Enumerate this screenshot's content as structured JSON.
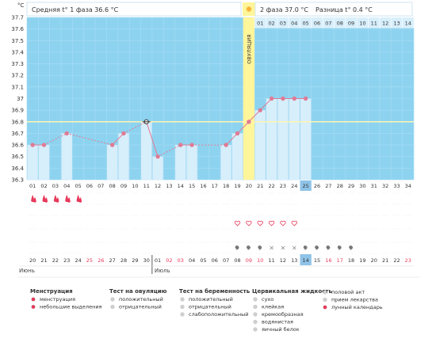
{
  "header": {
    "unit": "°C",
    "phase1": "Средняя t° 1 фаза 36.6 °C",
    "phase2": "2 фаза 37.0 °C",
    "diff": "Разница t° 0.4 °C",
    "ovulation": "ОВУЛЯЦИЯ"
  },
  "chart_data": {
    "type": "line",
    "ylim": [
      36.3,
      37.7
    ],
    "yticks": [
      "37.7",
      "37.6",
      "37.5",
      "37.4",
      "37.3",
      "37.2",
      "37.1",
      "37",
      "36.9",
      "36.8",
      "36.7",
      "36.6",
      "36.5",
      "36.4",
      "36.3"
    ],
    "coverline": 36.8,
    "days": [
      "01",
      "02",
      "03",
      "04",
      "05",
      "06",
      "07",
      "08",
      "09",
      "10",
      "11",
      "12",
      "13",
      "14",
      "15",
      "16",
      "17",
      "18",
      "19",
      "20",
      "21",
      "22",
      "23",
      "24",
      "25",
      "26",
      "27",
      "28",
      "29",
      "30",
      "31",
      "32",
      "33",
      "34"
    ],
    "ovulation_day": 20,
    "current_day": 25,
    "temps": [
      36.6,
      36.6,
      null,
      36.7,
      null,
      null,
      null,
      36.6,
      36.7,
      null,
      36.8,
      36.5,
      null,
      36.6,
      36.6,
      null,
      null,
      36.6,
      36.7,
      36.8,
      36.9,
      37.0,
      37.0,
      37.0,
      37.0,
      null,
      null,
      null,
      null,
      null,
      null,
      null,
      null,
      null
    ],
    "phase2_days": [
      "01",
      "02",
      "03",
      "04",
      "05",
      "06",
      "07",
      "08",
      "09",
      "10",
      "11",
      "12",
      "13",
      "14"
    ],
    "dates": [
      "20",
      "21",
      "22",
      "23",
      "24",
      "25",
      "26",
      "27",
      "28",
      "29",
      "30",
      "01",
      "02",
      "03",
      "04",
      "05",
      "06",
      "07",
      "08",
      "09",
      "10",
      "11",
      "12",
      "13",
      "14",
      "15",
      "16",
      "17",
      "18",
      "19",
      "20",
      "21",
      "22",
      "23"
    ],
    "red_dates_idx": [
      5,
      6,
      12,
      13,
      19,
      20,
      26,
      27,
      33
    ],
    "today_date_idx": 24,
    "months": [
      "Июнь",
      "Июль"
    ],
    "menstruation_days": [
      1,
      2,
      3,
      4,
      5
    ],
    "intercourse_days": [
      19,
      20,
      21,
      22,
      23,
      24
    ],
    "fluid_days": [
      19,
      20,
      21,
      22,
      23,
      24,
      25,
      26,
      27,
      28,
      29
    ],
    "fluid_types": [
      "cream",
      "cream",
      "cream",
      "dry",
      "dry",
      "dry",
      "cream",
      "cream",
      "cream",
      "cream",
      "cream"
    ]
  },
  "legend": {
    "groups": [
      {
        "title": "Менструация",
        "items": [
          "менструация",
          "небольшие выделения"
        ]
      },
      {
        "title": "Тест на овуляцию",
        "items": [
          "положительный",
          "отрицательный"
        ]
      },
      {
        "title": "Тест на беременность",
        "items": [
          "положительный",
          "отрицательный",
          "слабоположительный"
        ]
      },
      {
        "title": "Цервикальная жидкость",
        "items": [
          "сухо",
          "клейкая",
          "кремообразная",
          "водянистая",
          "яичный белок"
        ]
      },
      {
        "title": "",
        "items": [
          "половой акт",
          "прием лекарства",
          "лунный календарь"
        ]
      }
    ]
  },
  "colors": {
    "plot_bg": "#8dd3f0",
    "bar": "#d7eefb",
    "line": "#e07b94",
    "coverline": "#fff5b0",
    "ovulation": "#fff59a",
    "today": "#8fc3e8",
    "red": "#e8385a"
  }
}
